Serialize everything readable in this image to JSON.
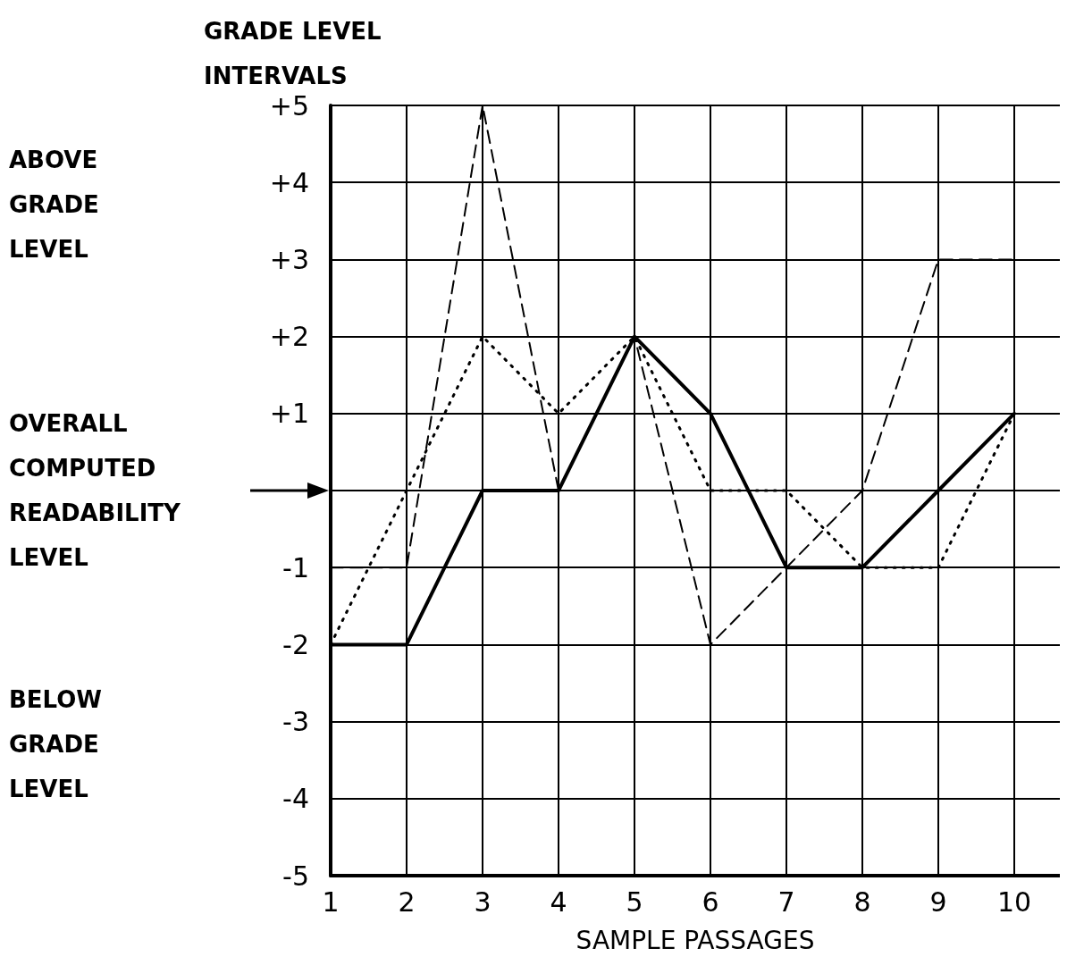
{
  "chart_data": {
    "type": "line",
    "ylabel": "GRADE LEVEL\nINTERVALS",
    "xlabel": "SAMPLE PASSAGES",
    "x": [
      1,
      2,
      3,
      4,
      5,
      6,
      7,
      8,
      9,
      10
    ],
    "series": [
      {
        "color": "#000000",
        "line_style": "solid",
        "values": [
          -2,
          -2,
          0,
          0,
          2,
          1,
          -1,
          -1,
          0,
          1
        ]
      },
      {
        "color": "#000000",
        "line_style": "dashed",
        "values": [
          -1,
          -1,
          5,
          0,
          2,
          -2,
          -1,
          0,
          3,
          3
        ]
      },
      {
        "color": "#000000",
        "line_style": "dotted",
        "values": [
          -2,
          0,
          2,
          1,
          2,
          0,
          0,
          -1,
          -1,
          1
        ]
      }
    ],
    "xlim": [
      1,
      10.6
    ],
    "xticks": [
      1,
      2,
      3,
      4,
      5,
      6,
      7,
      8,
      9,
      10
    ],
    "ylim": [
      -5,
      5
    ],
    "yticks": [
      {
        "value": 5,
        "label": "+5"
      },
      {
        "value": 4,
        "label": "+4"
      },
      {
        "value": 3,
        "label": "+3"
      },
      {
        "value": 2,
        "label": "+2"
      },
      {
        "value": 1,
        "label": "+1"
      },
      -1,
      -2,
      -3,
      -4,
      -5
    ],
    "ref_lines": [
      {
        "axis": "y",
        "value": 0,
        "label": "OVERALL\nCOMPUTED\nREADABILITY\nLEVEL",
        "color": "#000000"
      }
    ],
    "annotations": [
      "ABOVE\nGRADE\nLEVEL",
      "BELOW\nGRADE\nLEVEL"
    ],
    "grid": true,
    "marker": "none"
  }
}
